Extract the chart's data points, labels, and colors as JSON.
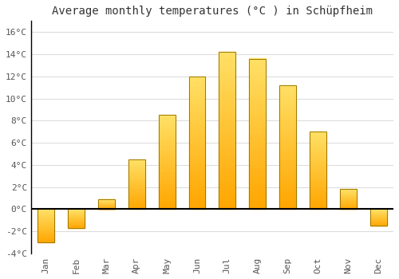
{
  "months": [
    "Jan",
    "Feb",
    "Mar",
    "Apr",
    "May",
    "Jun",
    "Jul",
    "Aug",
    "Sep",
    "Oct",
    "Nov",
    "Dec"
  ],
  "temperatures": [
    -3.0,
    -1.7,
    0.9,
    4.5,
    8.5,
    12.0,
    14.2,
    13.6,
    11.2,
    7.0,
    1.8,
    -1.5
  ],
  "title": "Average monthly temperatures (°C ) in Schüpfheim",
  "bar_color_bottom": "#FFA500",
  "bar_color_top": "#FFE066",
  "bar_edge_color": "#A07800",
  "background_color": "#ffffff",
  "grid_color": "#dddddd",
  "ylim": [
    -4,
    17
  ],
  "yticks": [
    -4,
    -2,
    0,
    2,
    4,
    6,
    8,
    10,
    12,
    14,
    16
  ],
  "title_fontsize": 10,
  "tick_fontsize": 8,
  "zero_line_color": "#000000"
}
